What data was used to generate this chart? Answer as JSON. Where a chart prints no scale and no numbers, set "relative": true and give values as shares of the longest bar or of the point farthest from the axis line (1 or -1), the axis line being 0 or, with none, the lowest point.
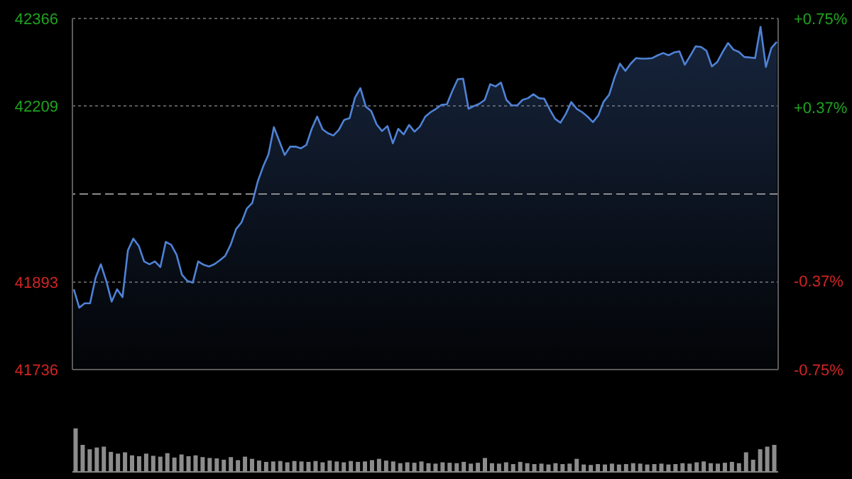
{
  "chart_data": [
    {
      "type": "area",
      "categories": [
        null,
        null,
        null,
        null,
        null,
        null,
        null,
        null,
        null,
        null,
        null,
        null,
        null,
        null,
        null,
        null,
        null,
        null,
        null,
        null,
        null,
        null,
        null,
        null,
        null,
        null,
        null,
        null,
        null,
        null,
        null,
        null,
        null,
        null,
        null,
        null,
        null,
        null,
        null,
        null,
        null,
        null,
        null,
        null,
        null,
        null,
        null,
        null,
        null,
        null,
        null,
        null,
        null,
        null,
        null,
        null,
        null,
        null,
        null,
        null,
        null,
        null,
        null,
        null,
        null,
        null,
        null,
        null,
        null,
        null,
        null,
        null,
        null,
        null,
        null,
        null,
        null,
        null,
        null,
        null,
        null,
        null,
        null,
        null,
        null,
        null,
        null,
        null,
        null,
        null,
        null,
        null,
        null,
        null,
        null,
        null,
        null,
        null,
        null,
        null,
        null,
        null,
        null,
        null,
        null,
        null,
        null,
        null,
        null,
        null,
        null,
        null,
        null,
        null,
        null,
        null,
        null,
        null,
        null,
        null,
        null,
        null,
        null,
        null,
        null,
        null,
        null,
        null,
        null,
        null,
        null
      ],
      "series": [
        {
          "color": "#4f82d6",
          "values": [
            41880,
            41847,
            41855,
            41855,
            41900,
            41925,
            41895,
            41858,
            41880,
            41866,
            41950,
            41971,
            41958,
            41930,
            41925,
            41930,
            41920,
            41965,
            41960,
            41942,
            41906,
            41895,
            41892,
            41930,
            41924,
            41921,
            41925,
            41932,
            41940,
            41960,
            41988,
            42000,
            42025,
            42035,
            42073,
            42100,
            42122,
            42171,
            42146,
            42121,
            42136,
            42136,
            42133,
            42139,
            42168,
            42190,
            42167,
            42160,
            42156,
            42166,
            42184,
            42187,
            42224,
            42241,
            42208,
            42200,
            42176,
            42164,
            42173,
            42142,
            42168,
            42158,
            42175,
            42163,
            42172,
            42190,
            42198,
            42204,
            42211,
            42212,
            42236,
            42257,
            42258,
            42204,
            42209,
            42213,
            42220,
            42248,
            42244,
            42251,
            42220,
            42210,
            42210,
            42220,
            42223,
            42230,
            42223,
            42222,
            42203,
            42186,
            42179,
            42195,
            42216,
            42204,
            42198,
            42190,
            42180,
            42192,
            42217,
            42229,
            42260,
            42285,
            42272,
            42285,
            42295,
            42294,
            42294,
            42295,
            42300,
            42304,
            42300,
            42305,
            42307,
            42283,
            42299,
            42316,
            42315,
            42308,
            42280,
            42288,
            42306,
            42322,
            42310,
            42306,
            42297,
            42296,
            42295,
            42351,
            42279,
            42313,
            42324
          ]
        }
      ],
      "ylim": [
        41736,
        42366
      ],
      "yticks": [
        41736,
        41893,
        42209,
        42366
      ],
      "y2lim": [
        -0.75,
        0.75
      ],
      "y2ticks": [
        {
          "value": -0.75,
          "label": "-0.75%"
        },
        {
          "value": -0.37,
          "label": "-0.37%"
        },
        {
          "value": 0.37,
          "label": "+0.37%"
        },
        {
          "value": 0.75,
          "label": "+0.75%"
        }
      ],
      "ref_lines": [
        {
          "axis": "y2",
          "value": 0,
          "line_style": "dashed",
          "color": "#8a8a8a"
        }
      ],
      "tick_labels": "y",
      "grid": true
    },
    {
      "type": "bar",
      "relative": true,
      "color": "#8c8c8c",
      "tick_labels": false,
      "categories": [
        null,
        null,
        null,
        null,
        null,
        null,
        null,
        null,
        null,
        null,
        null,
        null,
        null,
        null,
        null,
        null,
        null,
        null,
        null,
        null,
        null,
        null,
        null,
        null,
        null,
        null,
        null,
        null,
        null,
        null,
        null,
        null,
        null,
        null,
        null,
        null,
        null,
        null,
        null,
        null,
        null,
        null,
        null,
        null,
        null,
        null,
        null,
        null,
        null,
        null,
        null,
        null,
        null,
        null,
        null,
        null,
        null,
        null,
        null,
        null,
        null,
        null,
        null,
        null,
        null,
        null,
        null,
        null,
        null,
        null,
        null,
        null,
        null,
        null,
        null,
        null,
        null,
        null,
        null,
        null,
        null,
        null,
        null,
        null,
        null,
        null,
        null,
        null,
        null,
        null,
        null,
        null,
        null,
        null,
        null,
        null,
        null,
        null,
        null,
        null
      ],
      "values": [
        1.0,
        0.62,
        0.52,
        0.56,
        0.58,
        0.46,
        0.42,
        0.45,
        0.38,
        0.36,
        0.42,
        0.37,
        0.35,
        0.43,
        0.33,
        0.4,
        0.36,
        0.38,
        0.34,
        0.32,
        0.31,
        0.28,
        0.34,
        0.27,
        0.35,
        0.3,
        0.26,
        0.23,
        0.24,
        0.25,
        0.22,
        0.25,
        0.24,
        0.23,
        0.25,
        0.22,
        0.26,
        0.24,
        0.22,
        0.25,
        0.23,
        0.24,
        0.27,
        0.3,
        0.26,
        0.24,
        0.2,
        0.22,
        0.21,
        0.24,
        0.2,
        0.19,
        0.22,
        0.21,
        0.2,
        0.23,
        0.19,
        0.21,
        0.32,
        0.2,
        0.19,
        0.22,
        0.18,
        0.23,
        0.2,
        0.18,
        0.19,
        0.17,
        0.2,
        0.18,
        0.19,
        0.3,
        0.17,
        0.16,
        0.18,
        0.17,
        0.19,
        0.17,
        0.18,
        0.2,
        0.19,
        0.17,
        0.18,
        0.19,
        0.17,
        0.18,
        0.2,
        0.19,
        0.22,
        0.24,
        0.2,
        0.19,
        0.21,
        0.23,
        0.2,
        0.45,
        0.28,
        0.52,
        0.58,
        0.62
      ]
    }
  ]
}
